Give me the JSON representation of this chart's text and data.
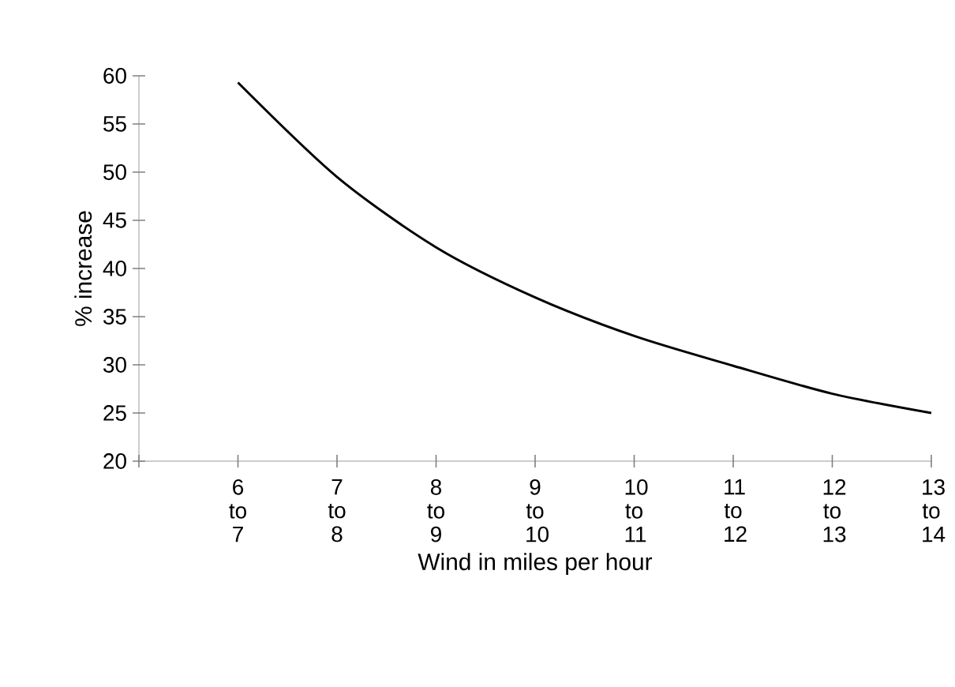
{
  "chart_data": {
    "type": "line",
    "xlabel": "Wind in miles per hour",
    "ylabel": "% increase",
    "categories": [
      null,
      "6 to 7",
      "7 to 8",
      "8 to 9",
      "9 to 10",
      "10 to 11",
      "11 to 12",
      "12 to 13",
      "13 to 14"
    ],
    "values": [
      null,
      59.3,
      49.5,
      42.2,
      37.0,
      33.0,
      29.9,
      27.0,
      25.0
    ],
    "color": "#000000",
    "ylim": [
      20,
      60
    ],
    "yticks": [
      20,
      25,
      30,
      35,
      40,
      45,
      50,
      55,
      60
    ],
    "marker": "none",
    "line_style": "solid"
  }
}
